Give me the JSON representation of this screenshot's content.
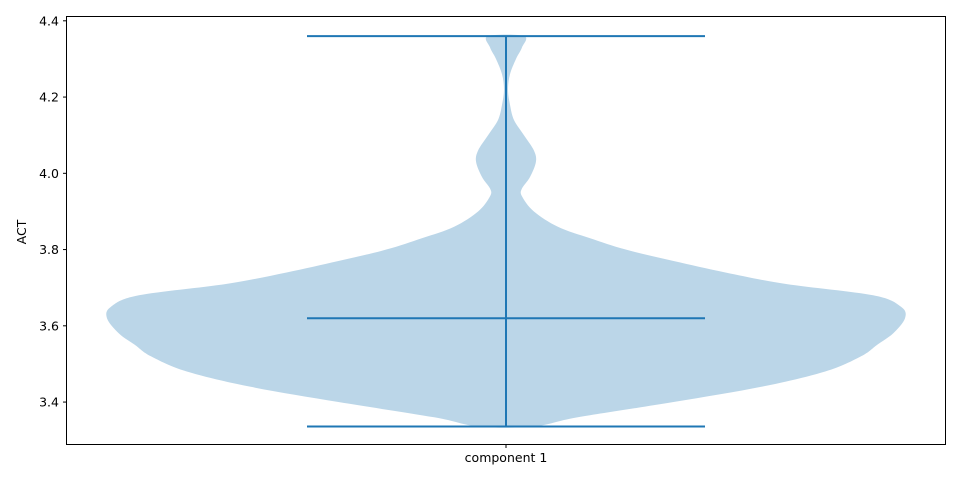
{
  "chart_data": {
    "type": "violin",
    "title": "",
    "xlabel": "",
    "ylabel": "ACT",
    "categories": [
      "component 1"
    ],
    "ylim": [
      3.29,
      4.41
    ],
    "yticks": [
      3.4,
      3.6,
      3.8,
      4.0,
      4.2,
      4.4
    ],
    "ytick_labels": [
      "3.4",
      "3.6",
      "3.8",
      "4.0",
      "4.2",
      "4.4"
    ],
    "grid": false,
    "colors": {
      "body": "#1f77b4",
      "body_alpha": 0.3,
      "lines": "#1f77b4"
    },
    "violin": {
      "min": 3.336,
      "max": 4.36,
      "median": 3.62,
      "density_profile": [
        {
          "y": 3.336,
          "w": 0.07
        },
        {
          "y": 3.36,
          "w": 0.18
        },
        {
          "y": 3.4,
          "w": 0.42
        },
        {
          "y": 3.44,
          "w": 0.64
        },
        {
          "y": 3.48,
          "w": 0.8
        },
        {
          "y": 3.52,
          "w": 0.89
        },
        {
          "y": 3.55,
          "w": 0.93
        },
        {
          "y": 3.58,
          "w": 0.97
        },
        {
          "y": 3.62,
          "w": 1.0
        },
        {
          "y": 3.65,
          "w": 0.99
        },
        {
          "y": 3.68,
          "w": 0.92
        },
        {
          "y": 3.71,
          "w": 0.7
        },
        {
          "y": 3.74,
          "w": 0.55
        },
        {
          "y": 3.77,
          "w": 0.42
        },
        {
          "y": 3.8,
          "w": 0.3
        },
        {
          "y": 3.83,
          "w": 0.21
        },
        {
          "y": 3.86,
          "w": 0.13
        },
        {
          "y": 3.9,
          "w": 0.07
        },
        {
          "y": 3.94,
          "w": 0.04
        },
        {
          "y": 3.96,
          "w": 0.04
        },
        {
          "y": 3.99,
          "w": 0.06
        },
        {
          "y": 4.03,
          "w": 0.075
        },
        {
          "y": 4.06,
          "w": 0.07
        },
        {
          "y": 4.1,
          "w": 0.045
        },
        {
          "y": 4.14,
          "w": 0.02
        },
        {
          "y": 4.18,
          "w": 0.01
        },
        {
          "y": 4.22,
          "w": 0.005
        },
        {
          "y": 4.26,
          "w": 0.01
        },
        {
          "y": 4.3,
          "w": 0.025
        },
        {
          "y": 4.33,
          "w": 0.04
        },
        {
          "y": 4.36,
          "w": 0.045
        }
      ]
    }
  }
}
